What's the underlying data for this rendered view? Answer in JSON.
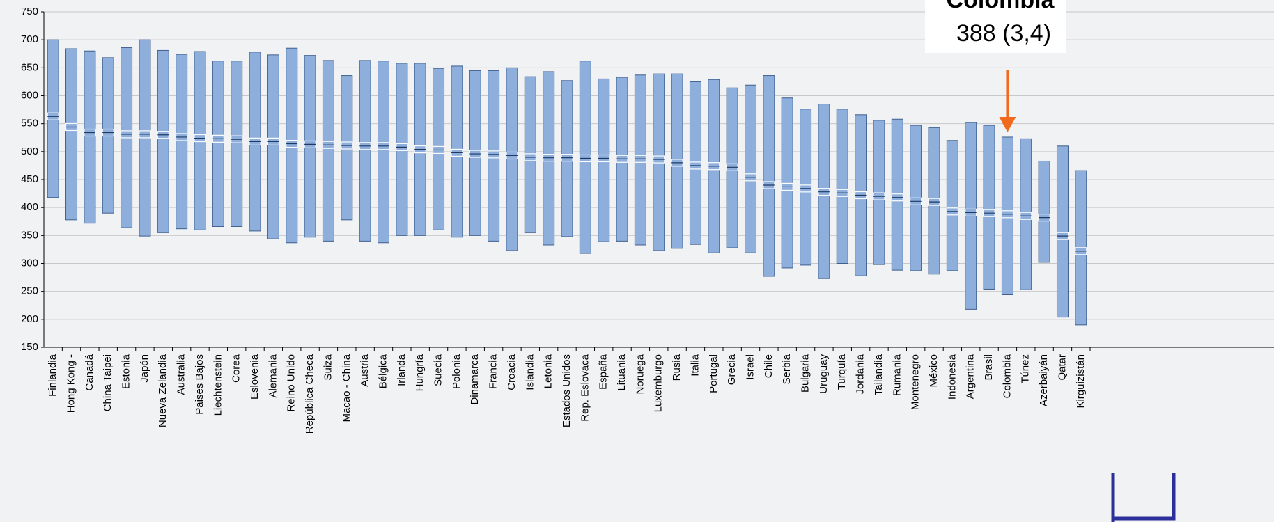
{
  "chart_data": {
    "type": "range",
    "categories": [
      "Finlandia",
      "Hong Kong -",
      "Canadá",
      "China Taipei",
      "Estonia",
      "Japón",
      "Nueva Zelandia",
      "Australia",
      "Paises Bajos",
      "Liechtenstein",
      "Corea",
      "Eslovenia",
      "Alemania",
      "Reino Unido",
      "República Checa",
      "Suiza",
      "Macao - China",
      "Austria",
      "Bélgica",
      "Irlanda",
      "Hungría",
      "Suecia",
      "Polonia",
      "Dinamarca",
      "Francia",
      "Croacia",
      "Islandia",
      "Letonia",
      "Estados Unidos",
      "Rep. Eslovaca",
      "España",
      "Lituania",
      "Noruega",
      "Luxemburgo",
      "Rusia",
      "Italia",
      "Portugal",
      "Grecia",
      "Israel",
      "Chile",
      "Serbia",
      "Bulgaria",
      "Uruguay",
      "Turquía",
      "Jordania",
      "Tailandia",
      "Rumania",
      "Montenegro",
      "México",
      "Indonesia",
      "Argentina",
      "Brasil",
      "Colombia",
      "Túnez",
      "Azerbaiyán",
      "Qatar",
      "Kirguizistán"
    ],
    "high": [
      700,
      684,
      680,
      668,
      686,
      700,
      681,
      674,
      679,
      662,
      662,
      678,
      673,
      685,
      672,
      663,
      636,
      663,
      662,
      658,
      658,
      649,
      653,
      645,
      645,
      650,
      634,
      643,
      627,
      662,
      630,
      633,
      637,
      639,
      639,
      625,
      629,
      614,
      619,
      636,
      596,
      576,
      585,
      576,
      566,
      556,
      558,
      547,
      543,
      520,
      552,
      547,
      526,
      523,
      483,
      510,
      466
    ],
    "low": [
      418,
      378,
      372,
      390,
      364,
      349,
      355,
      362,
      360,
      366,
      366,
      358,
      344,
      337,
      347,
      340,
      378,
      340,
      337,
      350,
      350,
      360,
      347,
      350,
      340,
      323,
      355,
      333,
      348,
      318,
      339,
      340,
      333,
      323,
      327,
      334,
      319,
      328,
      319,
      277,
      292,
      297,
      273,
      300,
      278,
      298,
      288,
      287,
      281,
      287,
      218,
      254,
      244,
      253,
      302,
      204,
      190
    ],
    "mean": [
      563,
      544,
      534,
      534,
      531,
      531,
      530,
      526,
      524,
      523,
      522,
      518,
      518,
      514,
      513,
      512,
      511,
      510,
      510,
      508,
      504,
      503,
      498,
      496,
      495,
      493,
      490,
      489,
      489,
      488,
      488,
      487,
      487,
      486,
      480,
      475,
      474,
      472,
      454,
      440,
      437,
      434,
      428,
      426,
      422,
      420,
      418,
      411,
      410,
      393,
      391,
      390,
      388,
      385,
      382,
      349,
      322
    ],
    "color": "#8eaedb",
    "ylim": [
      150,
      750
    ],
    "yticks": [
      150,
      200,
      250,
      300,
      350,
      400,
      450,
      500,
      550,
      600,
      650,
      700,
      750
    ],
    "grid": true,
    "annotation": {
      "title": "Colombia",
      "text": "388 (3,4)",
      "color": "#f26b1d"
    }
  }
}
